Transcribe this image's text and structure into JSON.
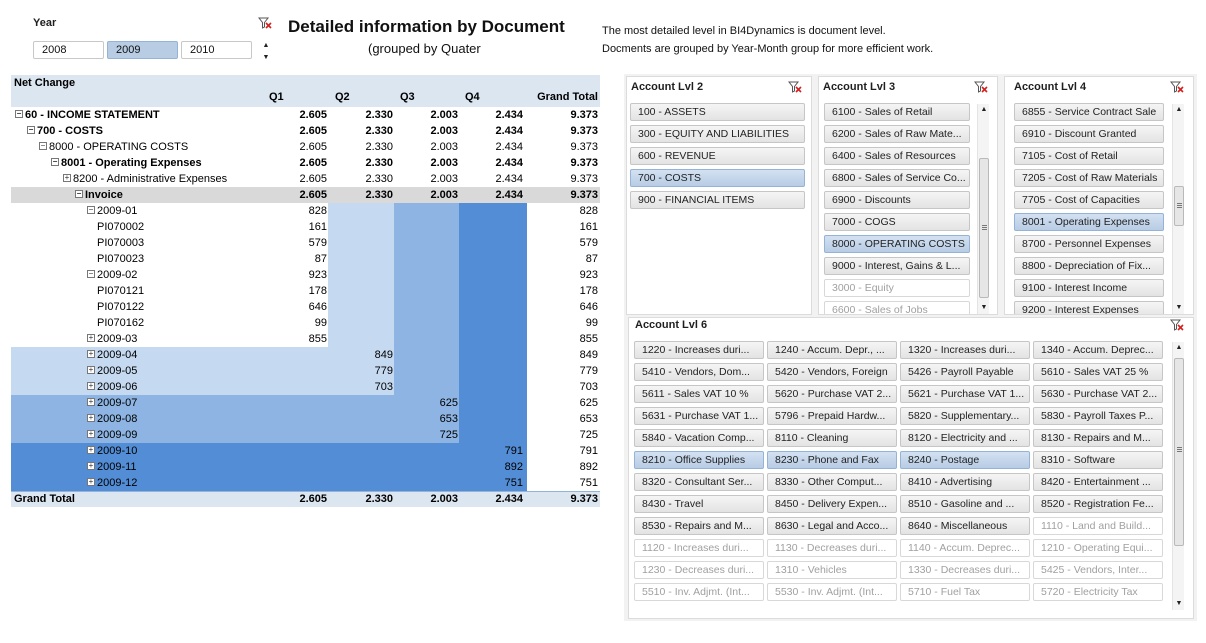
{
  "year_slicer": {
    "title": "Year",
    "items": [
      {
        "label": "2008",
        "selected": false
      },
      {
        "label": "2009",
        "selected": true
      },
      {
        "label": "2010",
        "selected": false
      }
    ]
  },
  "header": {
    "title": "Detailed information by Document",
    "subtitle": "(grouped by Quater",
    "desc_line1": "The most detailed level in  BI4Dynamics is document level.",
    "desc_line2": "Docments are grouped by Year-Month group for more efficient work."
  },
  "colors": {
    "header_bg": "#dce6f1",
    "q1_shade": "#c5d9f1",
    "q2_shade": "#8db4e2",
    "q3_shade": "#538dd5",
    "selected_item": "#b8cce4"
  },
  "pivot": {
    "measure": "Net Change",
    "columns": [
      "Q1",
      "Q2",
      "Q3",
      "Q4",
      "Grand Total"
    ],
    "rows": [
      {
        "label": "60 - INCOME STATEMENT",
        "indent": 0,
        "expander": "-",
        "bold": true,
        "values": [
          "2.605",
          "2.330",
          "2.003",
          "2.434",
          "9.373"
        ]
      },
      {
        "label": "700 - COSTS",
        "indent": 1,
        "expander": "-",
        "bold": true,
        "values": [
          "2.605",
          "2.330",
          "2.003",
          "2.434",
          "9.373"
        ]
      },
      {
        "label": "8000 - OPERATING COSTS",
        "indent": 2,
        "expander": "-",
        "bold": false,
        "values": [
          "2.605",
          "2.330",
          "2.003",
          "2.434",
          "9.373"
        ]
      },
      {
        "label": "8001 - Operating Expenses",
        "indent": 3,
        "expander": "-",
        "bold": true,
        "values": [
          "2.605",
          "2.330",
          "2.003",
          "2.434",
          "9.373"
        ]
      },
      {
        "label": "8200 - Administrative Expenses",
        "indent": 4,
        "expander": "+",
        "bold": false,
        "values": [
          "2.605",
          "2.330",
          "2.003",
          "2.434",
          "9.373"
        ]
      },
      {
        "label": "Invoice",
        "indent": 5,
        "expander": "-",
        "bold": true,
        "invoice": true,
        "values": [
          "2.605",
          "2.330",
          "2.003",
          "2.434",
          "9.373"
        ]
      },
      {
        "label": "2009-01",
        "indent": 6,
        "expander": "-",
        "bold": false,
        "values": [
          "828",
          "",
          "",
          "",
          "828"
        ]
      },
      {
        "label": "PI070002",
        "indent": 7,
        "expander": "",
        "bold": false,
        "values": [
          "161",
          "",
          "",
          "",
          "161"
        ]
      },
      {
        "label": "PI070003",
        "indent": 7,
        "expander": "",
        "bold": false,
        "values": [
          "579",
          "",
          "",
          "",
          "579"
        ]
      },
      {
        "label": "PI070023",
        "indent": 7,
        "expander": "",
        "bold": false,
        "values": [
          "87",
          "",
          "",
          "",
          "87"
        ]
      },
      {
        "label": "2009-02",
        "indent": 6,
        "expander": "-",
        "bold": false,
        "values": [
          "923",
          "",
          "",
          "",
          "923"
        ]
      },
      {
        "label": "PI070121",
        "indent": 7,
        "expander": "",
        "bold": false,
        "values": [
          "178",
          "",
          "",
          "",
          "178"
        ]
      },
      {
        "label": "PI070122",
        "indent": 7,
        "expander": "",
        "bold": false,
        "values": [
          "646",
          "",
          "",
          "",
          "646"
        ]
      },
      {
        "label": "PI070162",
        "indent": 7,
        "expander": "",
        "bold": false,
        "values": [
          "99",
          "",
          "",
          "",
          "99"
        ]
      },
      {
        "label": "2009-03",
        "indent": 6,
        "expander": "+",
        "bold": false,
        "values": [
          "855",
          "",
          "",
          "",
          "855"
        ]
      },
      {
        "label": "2009-04",
        "indent": 6,
        "expander": "+",
        "bold": false,
        "band": 1,
        "values": [
          "",
          "849",
          "",
          "",
          "849"
        ]
      },
      {
        "label": "2009-05",
        "indent": 6,
        "expander": "+",
        "bold": false,
        "band": 1,
        "values": [
          "",
          "779",
          "",
          "",
          "779"
        ]
      },
      {
        "label": "2009-06",
        "indent": 6,
        "expander": "+",
        "bold": false,
        "band": 1,
        "values": [
          "",
          "703",
          "",
          "",
          "703"
        ]
      },
      {
        "label": "2009-07",
        "indent": 6,
        "expander": "+",
        "bold": false,
        "band": 2,
        "values": [
          "",
          "",
          "625",
          "",
          "625"
        ]
      },
      {
        "label": "2009-08",
        "indent": 6,
        "expander": "+",
        "bold": false,
        "band": 2,
        "values": [
          "",
          "",
          "653",
          "",
          "653"
        ]
      },
      {
        "label": "2009-09",
        "indent": 6,
        "expander": "+",
        "bold": false,
        "band": 2,
        "values": [
          "",
          "",
          "725",
          "",
          "725"
        ]
      },
      {
        "label": "2009-10",
        "indent": 6,
        "expander": "+",
        "bold": false,
        "band": 3,
        "values": [
          "",
          "",
          "",
          "791",
          "791"
        ]
      },
      {
        "label": "2009-11",
        "indent": 6,
        "expander": "+",
        "bold": false,
        "band": 3,
        "values": [
          "",
          "",
          "",
          "892",
          "892"
        ]
      },
      {
        "label": "2009-12",
        "indent": 6,
        "expander": "+",
        "bold": false,
        "band": 3,
        "values": [
          "",
          "",
          "",
          "751",
          "751"
        ]
      }
    ],
    "grand_total": {
      "label": "Grand Total",
      "values": [
        "2.605",
        "2.330",
        "2.003",
        "2.434",
        "9.373"
      ]
    }
  },
  "slicers": {
    "lvl2": {
      "title": "Account Lvl 2",
      "items": [
        {
          "label": "100 - ASSETS",
          "state": "normal"
        },
        {
          "label": "300 - EQUITY AND LIABILITIES",
          "state": "normal"
        },
        {
          "label": "600 - REVENUE",
          "state": "normal"
        },
        {
          "label": "700 - COSTS",
          "state": "selected"
        },
        {
          "label": "900 - FINANCIAL ITEMS",
          "state": "normal"
        }
      ]
    },
    "lvl3": {
      "title": "Account Lvl 3",
      "items": [
        {
          "label": "6100 - Sales of Retail",
          "state": "normal"
        },
        {
          "label": "6200 - Sales of Raw Mate...",
          "state": "normal"
        },
        {
          "label": "6400 - Sales of Resources",
          "state": "normal"
        },
        {
          "label": "6800 - Sales of Service Co...",
          "state": "normal"
        },
        {
          "label": "6900 - Discounts",
          "state": "normal"
        },
        {
          "label": "7000 - COGS",
          "state": "normal"
        },
        {
          "label": "8000 - OPERATING COSTS",
          "state": "selected"
        },
        {
          "label": "9000 - Interest, Gains & L...",
          "state": "normal"
        },
        {
          "label": "3000 - Equity",
          "state": "disabled"
        },
        {
          "label": "6600 - Sales of Jobs",
          "state": "disabled"
        }
      ]
    },
    "lvl4": {
      "title": "Account Lvl 4",
      "items": [
        {
          "label": "6855 - Service Contract Sale",
          "state": "normal"
        },
        {
          "label": "6910 - Discount Granted",
          "state": "normal"
        },
        {
          "label": "7105 - Cost of Retail",
          "state": "normal"
        },
        {
          "label": "7205 - Cost of Raw Materials",
          "state": "normal"
        },
        {
          "label": "7705 - Cost of Capacities",
          "state": "normal"
        },
        {
          "label": "8001 - Operating Expenses",
          "state": "selected"
        },
        {
          "label": "8700 - Personnel Expenses",
          "state": "normal"
        },
        {
          "label": "8800 - Depreciation of Fix...",
          "state": "normal"
        },
        {
          "label": "9100 - Interest Income",
          "state": "normal"
        },
        {
          "label": "9200 - Interest Expenses",
          "state": "normal"
        }
      ]
    },
    "lvl6": {
      "title": "Account Lvl 6",
      "items": [
        {
          "label": "1220 - Increases duri...",
          "state": "normal"
        },
        {
          "label": "1240 - Accum. Depr., ...",
          "state": "normal"
        },
        {
          "label": "1320 - Increases duri...",
          "state": "normal"
        },
        {
          "label": "1340 - Accum. Deprec...",
          "state": "normal"
        },
        {
          "label": "5410 - Vendors, Dom...",
          "state": "normal"
        },
        {
          "label": "5420 - Vendors, Foreign",
          "state": "normal"
        },
        {
          "label": "5426 - Payroll Payable",
          "state": "normal"
        },
        {
          "label": "5610 - Sales VAT 25 %",
          "state": "normal"
        },
        {
          "label": "5611 - Sales VAT 10 %",
          "state": "normal"
        },
        {
          "label": "5620 - Purchase VAT 2...",
          "state": "normal"
        },
        {
          "label": "5621 - Purchase VAT 1...",
          "state": "normal"
        },
        {
          "label": "5630 - Purchase VAT 2...",
          "state": "normal"
        },
        {
          "label": "5631 - Purchase VAT 1...",
          "state": "normal"
        },
        {
          "label": "5796 - Prepaid Hardw...",
          "state": "normal"
        },
        {
          "label": "5820 - Supplementary...",
          "state": "normal"
        },
        {
          "label": "5830 - Payroll Taxes P...",
          "state": "normal"
        },
        {
          "label": "5840 - Vacation Comp...",
          "state": "normal"
        },
        {
          "label": "8110 - Cleaning",
          "state": "normal"
        },
        {
          "label": "8120 - Electricity and ...",
          "state": "normal"
        },
        {
          "label": "8130 - Repairs and M...",
          "state": "normal"
        },
        {
          "label": "8210 - Office Supplies",
          "state": "selected"
        },
        {
          "label": "8230 - Phone and Fax",
          "state": "selected"
        },
        {
          "label": "8240 - Postage",
          "state": "selected"
        },
        {
          "label": "8310 - Software",
          "state": "normal"
        },
        {
          "label": "8320 - Consultant Ser...",
          "state": "normal"
        },
        {
          "label": "8330 - Other Comput...",
          "state": "normal"
        },
        {
          "label": "8410 - Advertising",
          "state": "normal"
        },
        {
          "label": "8420 - Entertainment ...",
          "state": "normal"
        },
        {
          "label": "8430 - Travel",
          "state": "normal"
        },
        {
          "label": "8450 - Delivery Expen...",
          "state": "normal"
        },
        {
          "label": "8510 - Gasoline and ...",
          "state": "normal"
        },
        {
          "label": "8520 - Registration Fe...",
          "state": "normal"
        },
        {
          "label": "8530 - Repairs and M...",
          "state": "normal"
        },
        {
          "label": "8630 - Legal and Acco...",
          "state": "normal"
        },
        {
          "label": "8640 - Miscellaneous",
          "state": "normal"
        },
        {
          "label": "1110 - Land and Build...",
          "state": "disabled"
        },
        {
          "label": "1120 - Increases duri...",
          "state": "disabled"
        },
        {
          "label": "1130 - Decreases duri...",
          "state": "disabled"
        },
        {
          "label": "1140 - Accum. Deprec...",
          "state": "disabled"
        },
        {
          "label": "1210 - Operating Equi...",
          "state": "disabled"
        },
        {
          "label": "1230 - Decreases duri...",
          "state": "disabled"
        },
        {
          "label": "1310 - Vehicles",
          "state": "disabled"
        },
        {
          "label": "1330 - Decreases duri...",
          "state": "disabled"
        },
        {
          "label": "5425 - Vendors, Inter...",
          "state": "disabled"
        },
        {
          "label": "5510 - Inv. Adjmt. (Int...",
          "state": "disabled"
        },
        {
          "label": "5530 - Inv. Adjmt. (Int...",
          "state": "disabled"
        },
        {
          "label": "5710 - Fuel Tax",
          "state": "disabled"
        },
        {
          "label": "5720 - Electricity Tax",
          "state": "disabled"
        }
      ]
    }
  }
}
